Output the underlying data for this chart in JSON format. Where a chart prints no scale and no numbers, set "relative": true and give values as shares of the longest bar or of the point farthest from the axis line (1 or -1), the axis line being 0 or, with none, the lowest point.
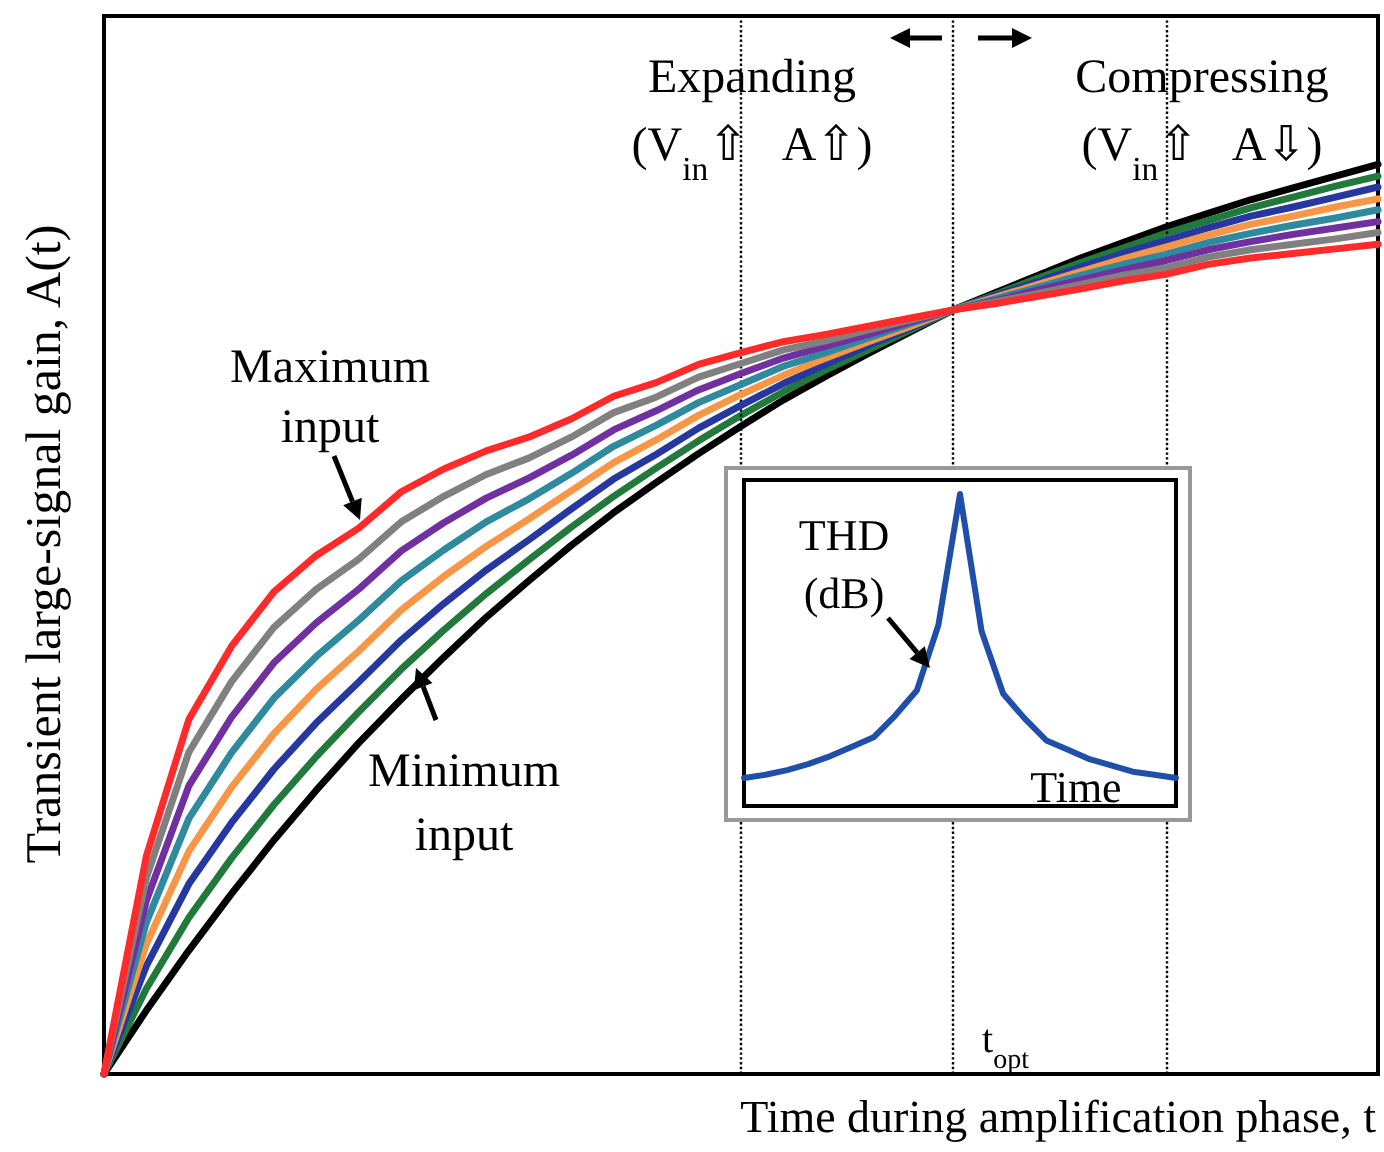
{
  "chart_data": [
    {
      "type": "line",
      "relative": true,
      "xlabel": "Time during amplification phase, t",
      "ylabel": "Transient large-signal gain, A(t)",
      "categories": [
        null,
        null,
        null,
        null,
        null,
        null,
        null,
        null,
        null,
        null,
        null,
        null,
        null,
        null,
        null,
        null,
        null,
        null,
        null,
        null,
        null,
        null,
        null,
        null,
        null,
        null,
        null,
        null,
        null,
        null,
        null
      ],
      "series": [
        {
          "color": "#000000",
          "values": [
            0,
            0.07,
            0.136,
            0.198,
            0.257,
            0.312,
            0.364,
            0.412,
            0.458,
            0.502,
            0.542,
            0.581,
            0.617,
            0.65,
            0.682,
            0.712,
            0.741,
            0.767,
            0.792,
            0.816,
            0.84,
            0.859,
            0.878,
            0.897,
            0.914,
            0.931,
            0.946,
            0.961,
            0.974,
            0.987,
            1
          ]
        },
        {
          "color": "#217a3c",
          "values": [
            0,
            0.094,
            0.172,
            0.237,
            0.296,
            0.349,
            0.398,
            0.445,
            0.488,
            0.528,
            0.565,
            0.601,
            0.635,
            0.666,
            0.696,
            0.724,
            0.75,
            0.774,
            0.796,
            0.818,
            0.84,
            0.857,
            0.875,
            0.892,
            0.908,
            0.924,
            0.938,
            0.952,
            0.964,
            0.976,
            0.987
          ]
        },
        {
          "color": "#2637a0",
          "values": [
            0,
            0.119,
            0.209,
            0.276,
            0.335,
            0.386,
            0.431,
            0.477,
            0.517,
            0.554,
            0.587,
            0.621,
            0.654,
            0.681,
            0.71,
            0.735,
            0.759,
            0.78,
            0.801,
            0.82,
            0.84,
            0.856,
            0.871,
            0.887,
            0.902,
            0.916,
            0.93,
            0.943,
            0.953,
            0.964,
            0.975
          ]
        },
        {
          "color": "#f79646",
          "values": [
            0,
            0.143,
            0.245,
            0.315,
            0.374,
            0.423,
            0.465,
            0.51,
            0.547,
            0.58,
            0.61,
            0.641,
            0.672,
            0.697,
            0.724,
            0.747,
            0.768,
            0.787,
            0.805,
            0.822,
            0.84,
            0.854,
            0.868,
            0.882,
            0.896,
            0.909,
            0.922,
            0.934,
            0.943,
            0.953,
            0.962
          ]
        },
        {
          "color": "#2f8a9e",
          "values": [
            0,
            0.167,
            0.281,
            0.353,
            0.413,
            0.459,
            0.499,
            0.542,
            0.576,
            0.607,
            0.632,
            0.66,
            0.69,
            0.713,
            0.738,
            0.758,
            0.778,
            0.793,
            0.809,
            0.825,
            0.84,
            0.852,
            0.865,
            0.878,
            0.89,
            0.901,
            0.914,
            0.924,
            0.933,
            0.941,
            0.95
          ]
        },
        {
          "color": "#7030a0",
          "values": [
            0,
            0.191,
            0.317,
            0.392,
            0.452,
            0.496,
            0.533,
            0.575,
            0.606,
            0.633,
            0.655,
            0.68,
            0.708,
            0.729,
            0.752,
            0.77,
            0.787,
            0.8,
            0.813,
            0.827,
            0.84,
            0.85,
            0.862,
            0.873,
            0.884,
            0.894,
            0.906,
            0.915,
            0.923,
            0.93,
            0.937
          ]
        },
        {
          "color": "#808080",
          "values": [
            0,
            0.216,
            0.354,
            0.431,
            0.491,
            0.533,
            0.566,
            0.607,
            0.635,
            0.659,
            0.677,
            0.7,
            0.727,
            0.744,
            0.766,
            0.781,
            0.796,
            0.806,
            0.818,
            0.829,
            0.84,
            0.849,
            0.858,
            0.868,
            0.878,
            0.886,
            0.898,
            0.906,
            0.912,
            0.918,
            0.925
          ]
        },
        {
          "color": "#ff2a2a",
          "values": [
            0,
            0.24,
            0.39,
            0.47,
            0.53,
            0.57,
            0.6,
            0.64,
            0.665,
            0.685,
            0.7,
            0.72,
            0.745,
            0.76,
            0.78,
            0.793,
            0.805,
            0.813,
            0.822,
            0.831,
            0.84,
            0.847,
            0.855,
            0.863,
            0.872,
            0.879,
            0.89,
            0.897,
            0.902,
            0.907,
            0.912
          ]
        }
      ],
      "annotations": [
        "Expanding",
        "(V$_{in}$⇧   A⇧)",
        "Compressing",
        "(V$_{in}$⇧   A⇩)",
        "Maximum input",
        "Minimum input",
        "t$_{opt}$"
      ],
      "marker": "none",
      "line_style": "solid",
      "grid": "x"
    },
    {
      "type": "line",
      "relative": true,
      "xlabel": "Time",
      "ylabel": "THD (dB)",
      "categories": [
        null,
        null,
        null,
        null,
        null,
        null,
        null,
        null,
        null,
        null,
        null,
        null,
        null,
        null,
        null,
        null,
        null,
        null,
        null,
        null,
        null
      ],
      "series": [
        {
          "color": "#1f4fa8",
          "values": [
            0.09,
            0.1,
            0.115,
            0.135,
            0.16,
            0.19,
            0.22,
            0.29,
            0.37,
            0.58,
            1,
            0.56,
            0.36,
            0.28,
            0.21,
            0.18,
            0.15,
            0.13,
            0.11,
            0.1,
            0.09
          ]
        }
      ],
      "marker": "none",
      "line_style": "solid",
      "grid": false
    }
  ]
}
